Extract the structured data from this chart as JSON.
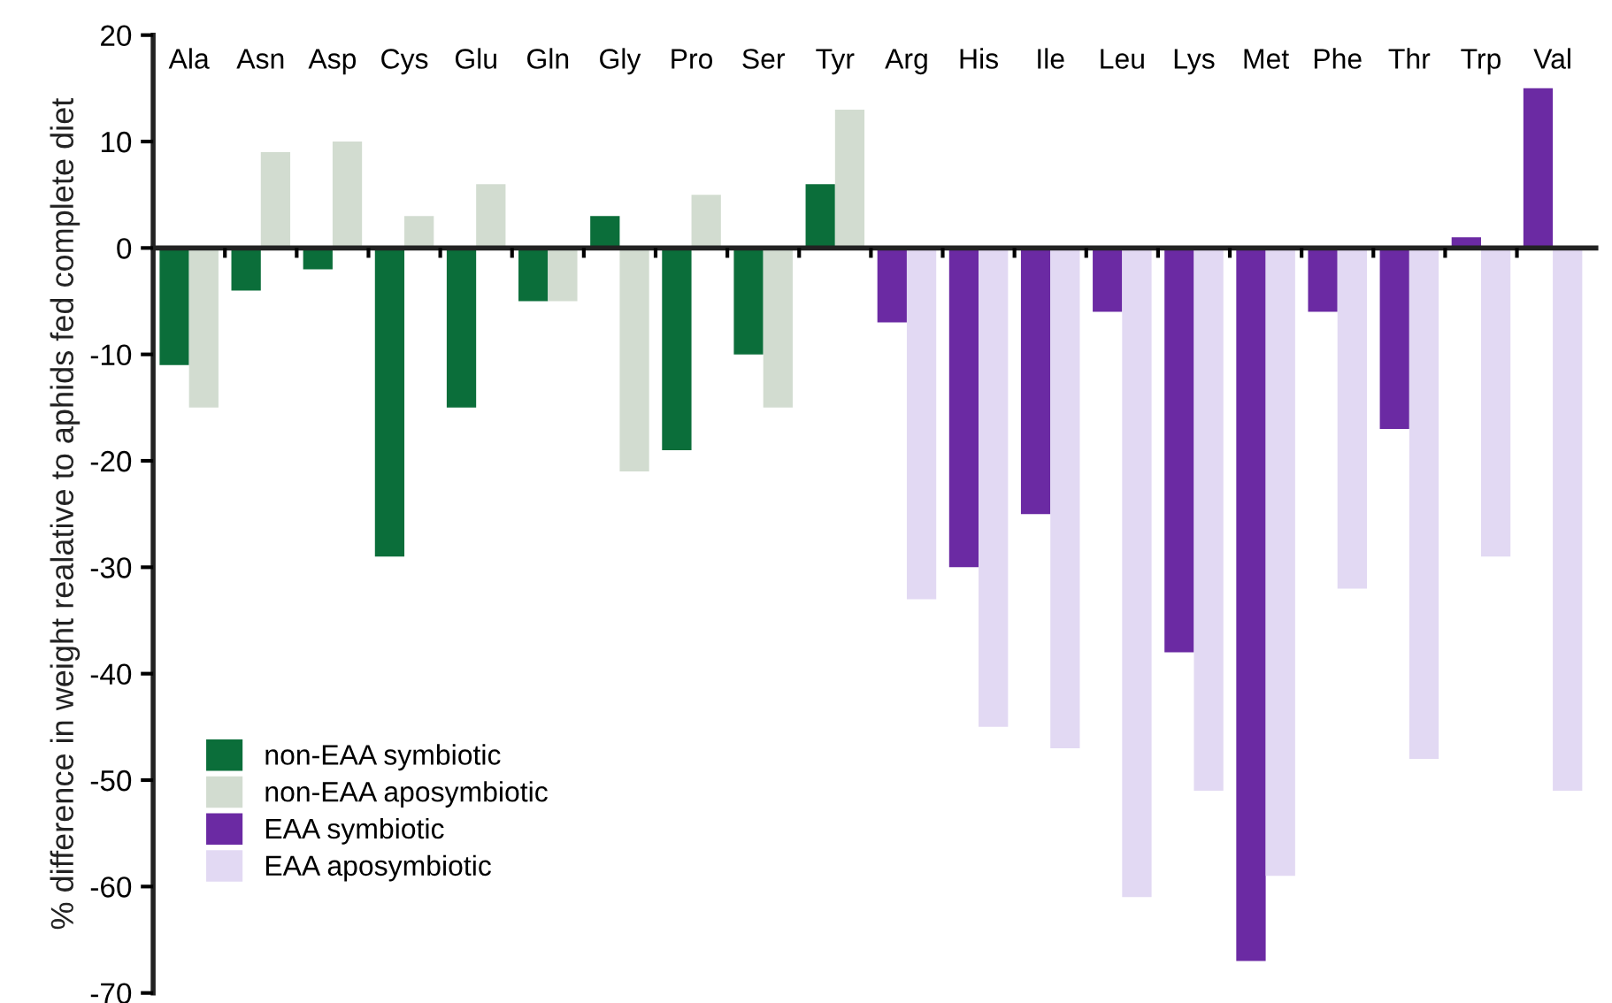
{
  "chart_data": {
    "type": "bar",
    "ylabel": "% difference in weight realative to aphids fed complete diet",
    "categories": [
      "Ala",
      "Asn",
      "Asp",
      "Cys",
      "Glu",
      "Gln",
      "Gly",
      "Pro",
      "Ser",
      "Tyr",
      "Arg",
      "His",
      "Ile",
      "Leu",
      "Lys",
      "Met",
      "Phe",
      "Thr",
      "Trp",
      "Val"
    ],
    "series": [
      {
        "name": "non-EAA symbiotic",
        "color": "#0b6e3a",
        "values": [
          -11,
          -4,
          -2,
          -29,
          -15,
          -5,
          3,
          -19,
          -10,
          6,
          null,
          null,
          null,
          null,
          null,
          null,
          null,
          null,
          null,
          null
        ]
      },
      {
        "name": "non-EAA aposymbiotic",
        "color": "#d2dcd0",
        "values": [
          -15,
          9,
          10,
          3,
          6,
          -5,
          -21,
          5,
          -15,
          13,
          null,
          null,
          null,
          null,
          null,
          null,
          null,
          null,
          null,
          null
        ]
      },
      {
        "name": "EAA symbiotic",
        "color": "#6b2aa3",
        "values": [
          null,
          null,
          null,
          null,
          null,
          null,
          null,
          null,
          null,
          null,
          -7,
          -30,
          -25,
          -6,
          -38,
          -67,
          -6,
          -17,
          1,
          15
        ]
      },
      {
        "name": "EAA aposymbiotic",
        "color": "#e2d9f3",
        "values": [
          null,
          null,
          null,
          null,
          null,
          null,
          null,
          null,
          null,
          null,
          -33,
          -45,
          -47,
          -61,
          -51,
          -59,
          -32,
          -48,
          -29,
          -51
        ]
      }
    ],
    "ylim": [
      -70,
      20
    ],
    "yticks": [
      -70,
      -60,
      -50,
      -40,
      -30,
      -20,
      -10,
      0,
      10,
      20
    ],
    "legend": "bottom left"
  }
}
